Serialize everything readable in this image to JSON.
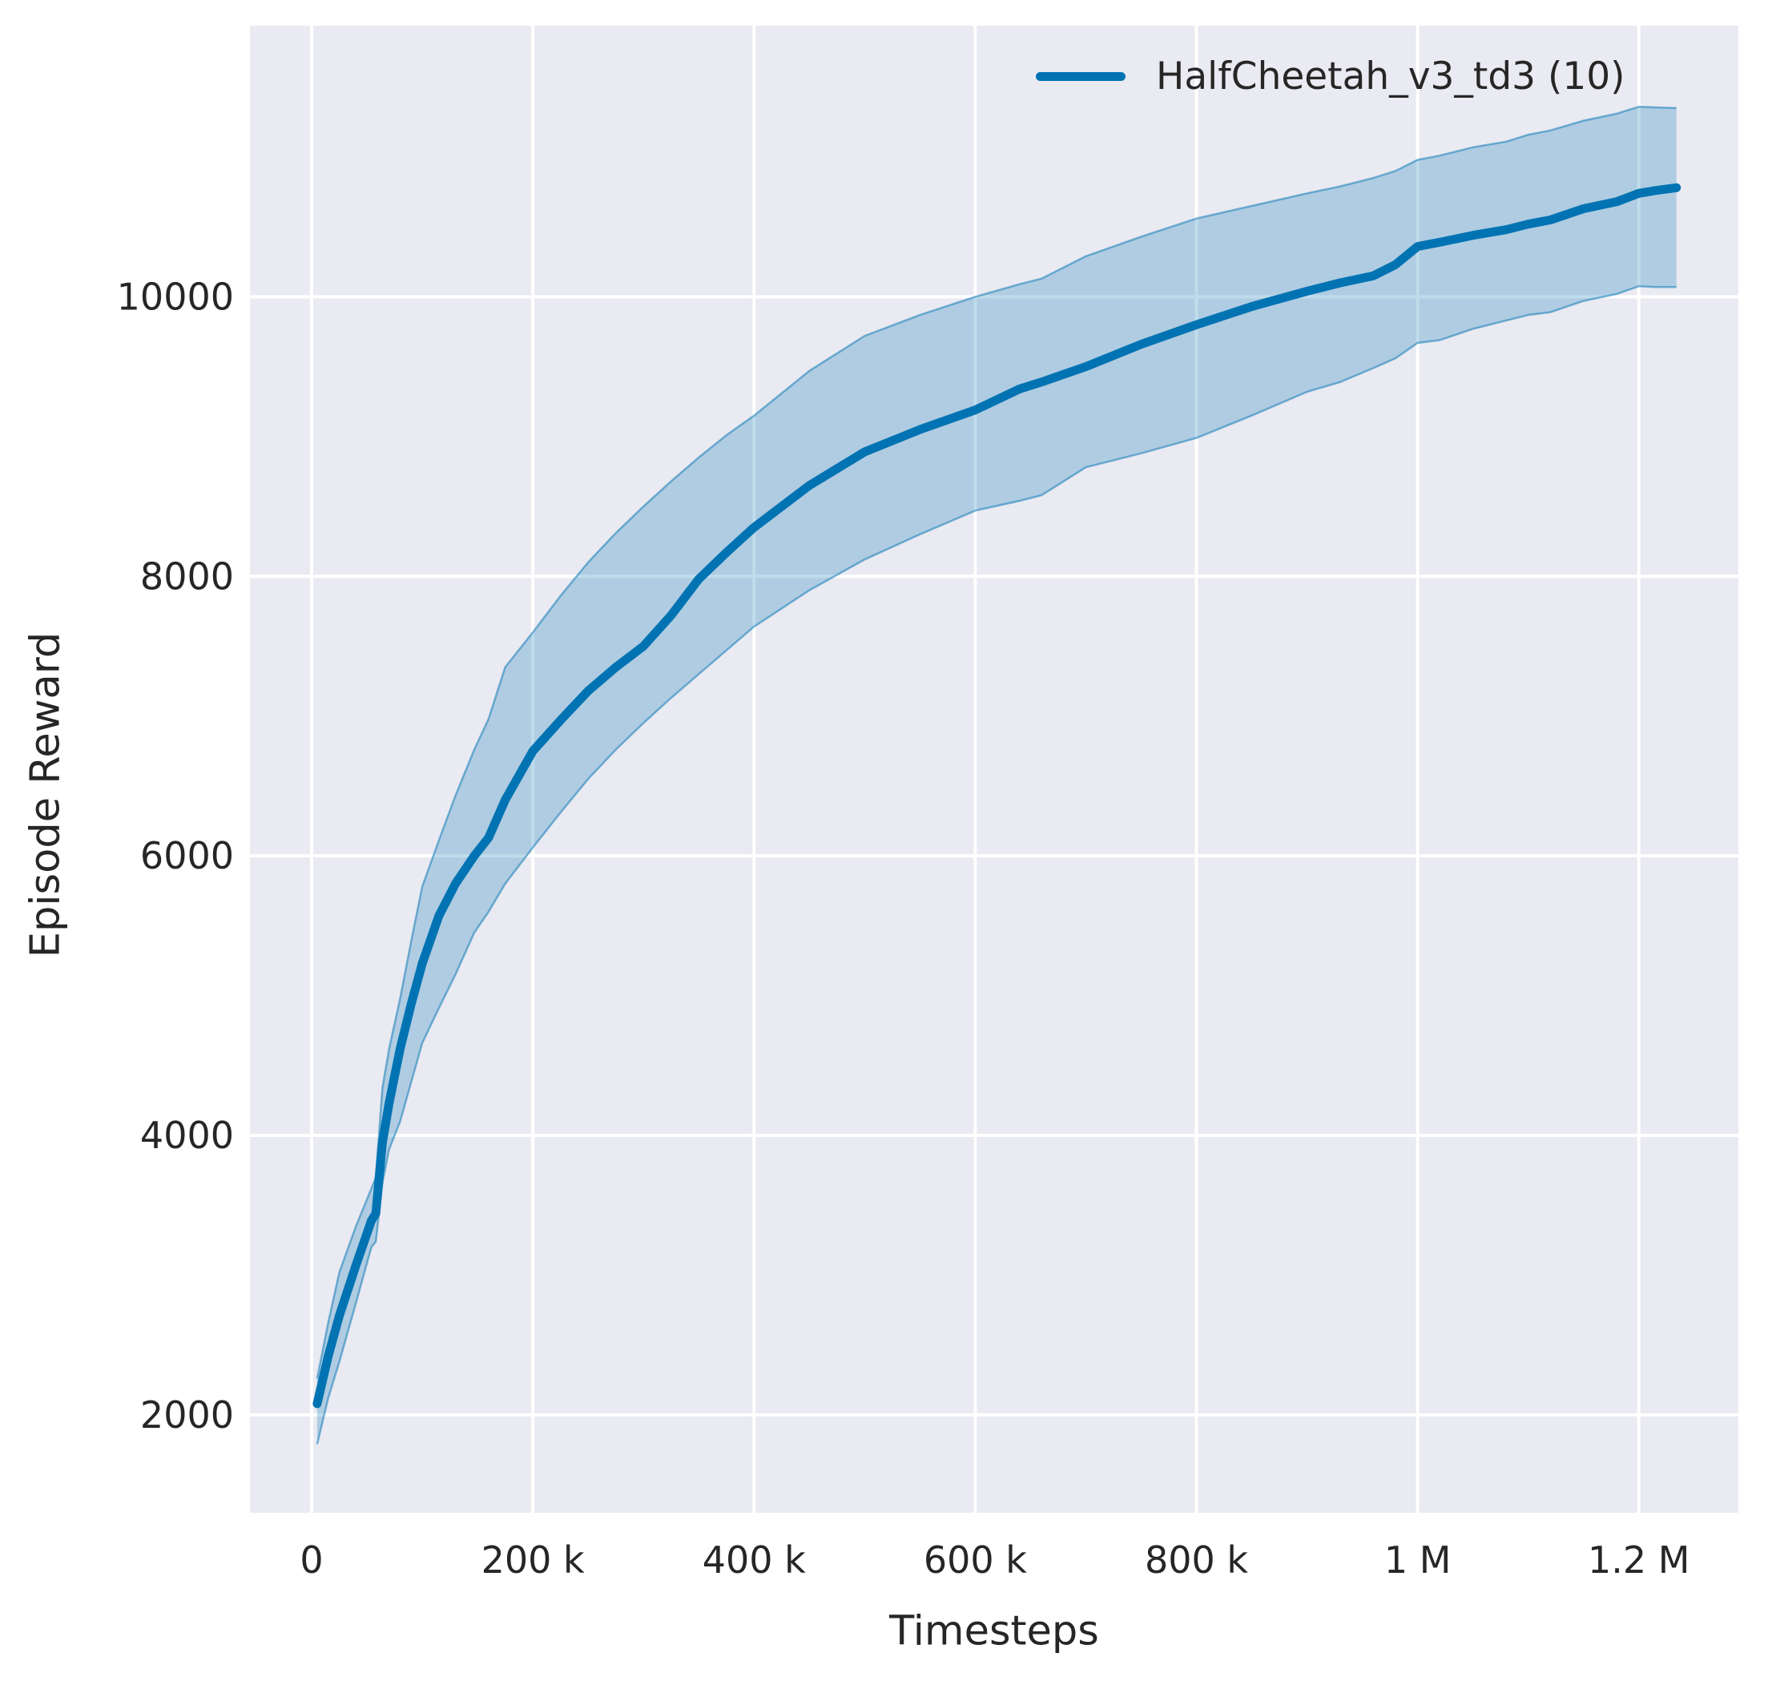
{
  "figure": {
    "background": "#ffffff"
  },
  "chart_data": {
    "type": "line",
    "title": "",
    "xlabel": "Timesteps",
    "ylabel": "Episode Reward",
    "grid": true,
    "plot_bg": "#eaeaf2",
    "grid_color": "#ffffff",
    "text_color": "#262626",
    "legend_position": "upper right",
    "legend": [
      {
        "label": "HalfCheetah_v3_td3 (10)",
        "color": "#0173b2"
      }
    ],
    "xlim": [
      -55800,
      1290000
    ],
    "ylim": [
      1300,
      11940
    ],
    "x_ticks": [
      {
        "value": 0,
        "label": "0"
      },
      {
        "value": 200000,
        "label": "200 k"
      },
      {
        "value": 400000,
        "label": "400 k"
      },
      {
        "value": 600000,
        "label": "600 k"
      },
      {
        "value": 800000,
        "label": "800 k"
      },
      {
        "value": 1000000,
        "label": "1 M"
      },
      {
        "value": 1200000,
        "label": "1.2 M"
      }
    ],
    "y_ticks": [
      {
        "value": 2000,
        "label": "2000"
      },
      {
        "value": 4000,
        "label": "4000"
      },
      {
        "value": 6000,
        "label": "6000"
      },
      {
        "value": 8000,
        "label": "8000"
      },
      {
        "value": 10000,
        "label": "10000"
      }
    ],
    "series": [
      {
        "name": "HalfCheetah_v3_td3 (10)",
        "color": "#0173b2",
        "band_fill_opacity": 0.25,
        "band_edge_opacity": 0.5,
        "x": [
          5000,
          15000,
          25000,
          40000,
          54000,
          58000,
          64000,
          70000,
          80000,
          90000,
          100000,
          115000,
          130000,
          147000,
          160000,
          175000,
          200000,
          225000,
          250000,
          275000,
          300000,
          325000,
          350000,
          375000,
          400000,
          450000,
          500000,
          550000,
          600000,
          640000,
          660000,
          700000,
          750000,
          800000,
          850000,
          900000,
          930000,
          960000,
          980000,
          1000000,
          1020000,
          1050000,
          1080000,
          1100000,
          1120000,
          1150000,
          1180000,
          1200000,
          1215000,
          1234000
        ],
        "mean": [
          2080,
          2420,
          2710,
          3070,
          3390,
          3440,
          3950,
          4230,
          4620,
          4940,
          5230,
          5570,
          5800,
          6000,
          6130,
          6400,
          6750,
          6970,
          7180,
          7350,
          7500,
          7720,
          7980,
          8170,
          8350,
          8650,
          8890,
          9050,
          9190,
          9340,
          9390,
          9500,
          9660,
          9800,
          9930,
          10040,
          10100,
          10150,
          10230,
          10360,
          10390,
          10440,
          10480,
          10520,
          10550,
          10630,
          10680,
          10740,
          10760,
          10780
        ],
        "lower": [
          1790,
          2120,
          2380,
          2800,
          3200,
          3240,
          3660,
          3900,
          4100,
          4380,
          4660,
          4910,
          5150,
          5450,
          5600,
          5800,
          6060,
          6310,
          6550,
          6760,
          6950,
          7130,
          7300,
          7470,
          7640,
          7900,
          8120,
          8300,
          8470,
          8540,
          8580,
          8780,
          8880,
          8990,
          9150,
          9320,
          9390,
          9490,
          9560,
          9670,
          9690,
          9770,
          9830,
          9870,
          9890,
          9970,
          10020,
          10075,
          10070,
          10070
        ],
        "upper": [
          2260,
          2660,
          3020,
          3350,
          3620,
          3700,
          4340,
          4620,
          4980,
          5390,
          5780,
          6110,
          6430,
          6760,
          6980,
          7350,
          7600,
          7860,
          8100,
          8310,
          8500,
          8680,
          8850,
          9010,
          9150,
          9470,
          9720,
          9870,
          10000,
          10090,
          10130,
          10290,
          10430,
          10560,
          10650,
          10740,
          10790,
          10850,
          10900,
          10980,
          11010,
          11070,
          11110,
          11160,
          11190,
          11260,
          11310,
          11360,
          11355,
          11350
        ]
      }
    ]
  }
}
